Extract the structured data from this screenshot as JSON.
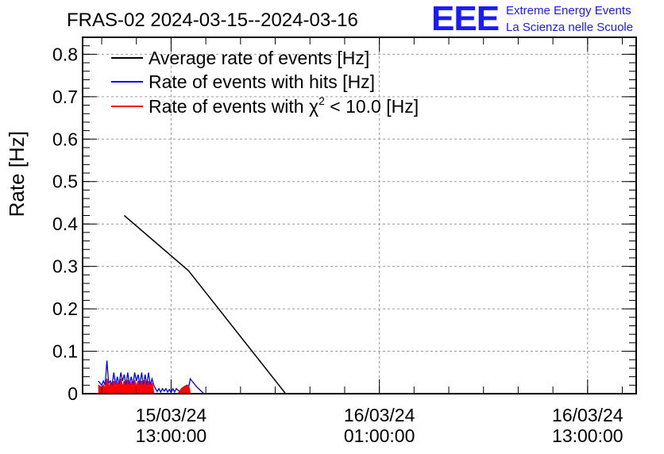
{
  "header": {
    "title": "FRAS-02 2024-03-15--2024-03-16",
    "logo_text": "EEE",
    "org_line1": "Extreme Energy Events",
    "org_line2": "La Scienza nelle Scuole"
  },
  "colors": {
    "average": "#000000",
    "hits": "#0000ff",
    "chi2": "#ff0000",
    "logo": "#1a1aff"
  },
  "chart_data": {
    "type": "line",
    "title": "FRAS-02 2024-03-15--2024-03-16",
    "xlabel": "",
    "ylabel": "Rate [Hz]",
    "ylim": [
      0,
      0.84
    ],
    "xlim_hours": [
      -5.1,
      26.8
    ],
    "x_unit": "hours since 15/03/24 13:00:00",
    "grid": true,
    "legend_position": "top-left",
    "y_ticks": [
      0,
      0.1,
      0.2,
      0.3,
      0.4,
      0.5,
      0.6,
      0.7,
      0.8
    ],
    "y_tick_labels": [
      "0",
      "0.1",
      "0.2",
      "0.3",
      "0.4",
      "0.5",
      "0.6",
      "0.7",
      "0.8"
    ],
    "x_ticks": [
      {
        "hours": 0,
        "date": "15/03/24",
        "time": "13:00:00"
      },
      {
        "hours": 12,
        "date": "16/03/24",
        "time": "01:00:00"
      },
      {
        "hours": 24,
        "date": "16/03/24",
        "time": "13:00:00"
      }
    ],
    "series": [
      {
        "name": "Average rate of events [Hz]",
        "legend_prefix": "Average rate of events [Hz]",
        "legend_suffix": "",
        "color": "#000000",
        "style": "line",
        "x": [
          -2.7,
          1.0,
          6.6
        ],
        "y": [
          0.42,
          0.29,
          0.0
        ]
      },
      {
        "name": "Rate of events with hits [Hz]",
        "legend_prefix": "Rate of events with hits [Hz]",
        "legend_suffix": "",
        "color": "#0000ff",
        "style": "spiky",
        "x": [
          -4.2,
          -4.0,
          -3.9,
          -3.8,
          -3.7,
          -3.6,
          -3.5,
          -3.4,
          -3.3,
          -3.2,
          -3.1,
          -3.0,
          -2.9,
          -2.8,
          -2.7,
          -2.6,
          -2.5,
          -2.4,
          -2.3,
          -2.2,
          -2.1,
          -2.0,
          -1.9,
          -1.8,
          -1.7,
          -1.6,
          -1.5,
          -1.4,
          -1.3,
          -1.2,
          -1.1,
          -1.0,
          -0.9,
          -0.8,
          -0.7,
          -0.6,
          -0.5,
          -0.4,
          -0.3,
          -0.2,
          -0.1,
          0.0,
          0.1,
          0.2,
          0.3,
          0.4,
          0.5,
          0.6,
          0.7,
          0.8,
          0.9,
          1.0,
          1.1,
          1.2,
          1.5,
          1.9,
          2.4,
          3.0,
          6.6
        ],
        "y": [
          0.03,
          0.02,
          0.03,
          0.02,
          0.078,
          0.025,
          0.03,
          0.02,
          0.05,
          0.02,
          0.04,
          0.02,
          0.05,
          0.03,
          0.045,
          0.02,
          0.05,
          0.02,
          0.04,
          0.02,
          0.05,
          0.03,
          0.045,
          0.02,
          0.05,
          0.02,
          0.045,
          0.02,
          0.05,
          0.02,
          0.035,
          0.02,
          0.012,
          0.005,
          0.012,
          0.004,
          0.012,
          0.006,
          0.012,
          0.004,
          0.01,
          0.003,
          0.012,
          0.004,
          0.012,
          0.008,
          0.005,
          0.012,
          0.004,
          0.015,
          0.02,
          0.012,
          0.035,
          0.03,
          0.015,
          0.0,
          0.0,
          0.0,
          0.0
        ]
      },
      {
        "name": "Rate of events with χ2 < 10.0 [Hz]",
        "legend_prefix": "Rate of events with χ",
        "legend_sup": "2",
        "legend_suffix": " < 10.0 [Hz]",
        "color": "#ff0000",
        "style": "filled",
        "x": [
          -4.2,
          -4.0,
          -3.9,
          -3.8,
          -3.7,
          -3.6,
          -3.5,
          -3.4,
          -3.3,
          -3.2,
          -3.1,
          -3.0,
          -2.9,
          -2.8,
          -2.7,
          -2.6,
          -2.5,
          -2.4,
          -2.3,
          -2.2,
          -2.1,
          -2.0,
          -1.9,
          -1.8,
          -1.7,
          -1.6,
          -1.5,
          -1.4,
          -1.3,
          -1.2,
          -1.1,
          -1.0,
          -0.5,
          0.0,
          0.4,
          0.6,
          0.8,
          0.9,
          1.0,
          1.1,
          1.4,
          3.0,
          6.6
        ],
        "y": [
          0.02,
          0.015,
          0.02,
          0.012,
          0.035,
          0.015,
          0.025,
          0.012,
          0.03,
          0.012,
          0.025,
          0.015,
          0.035,
          0.015,
          0.03,
          0.012,
          0.032,
          0.015,
          0.025,
          0.012,
          0.032,
          0.015,
          0.03,
          0.012,
          0.03,
          0.015,
          0.028,
          0.012,
          0.03,
          0.012,
          0.025,
          0.0,
          0.0,
          0.0,
          0.0,
          0.012,
          0.018,
          0.015,
          0.02,
          0.0,
          0.0,
          0.0,
          0.0
        ]
      }
    ]
  }
}
